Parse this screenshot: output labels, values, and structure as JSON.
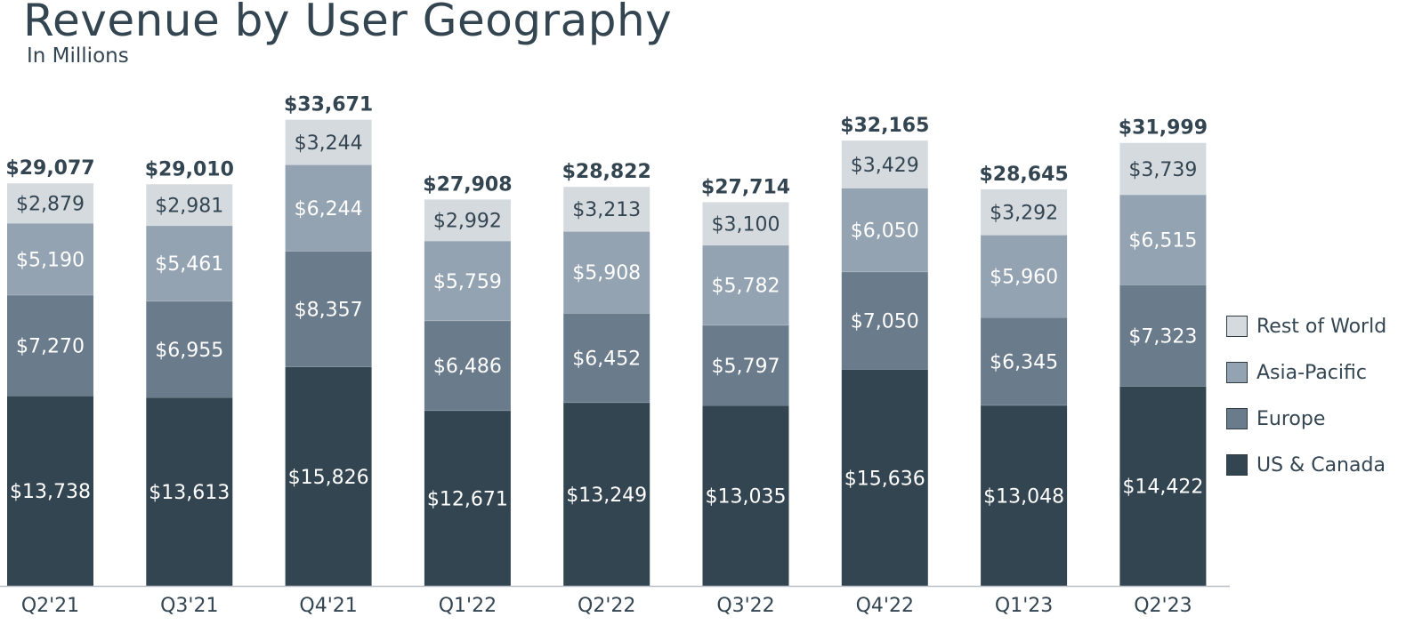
{
  "title": "Revenue by User Geography",
  "subtitle": "In Millions",
  "colors": {
    "us_canada": "#344552",
    "europe": "#6a7b8b",
    "asia_pacific": "#94a3b1",
    "rest_of_world": "#d5dadf",
    "text_dark": "#344552"
  },
  "legend": [
    {
      "label": "Rest of World",
      "color": "#d5dadf"
    },
    {
      "label": "Asia-Pacific",
      "color": "#94a3b1"
    },
    {
      "label": "Europe",
      "color": "#6a7b8b"
    },
    {
      "label": "US & Canada",
      "color": "#344552"
    }
  ],
  "chart_data": {
    "type": "bar",
    "stacked": true,
    "title": "Revenue by User Geography",
    "subtitle": "In Millions",
    "categories": [
      "Q2'21",
      "Q3'21",
      "Q4'21",
      "Q1'22",
      "Q2'22",
      "Q3'22",
      "Q4'22",
      "Q1'23",
      "Q2'23"
    ],
    "series": [
      {
        "name": "US & Canada",
        "values": [
          13738,
          13613,
          15826,
          12671,
          13249,
          13035,
          15636,
          13048,
          14422
        ]
      },
      {
        "name": "Europe",
        "values": [
          7270,
          6955,
          8357,
          6486,
          6452,
          5797,
          7050,
          6345,
          7323
        ]
      },
      {
        "name": "Asia-Pacific",
        "values": [
          5190,
          5461,
          6244,
          5759,
          5908,
          5782,
          6050,
          5960,
          6515
        ]
      },
      {
        "name": "Rest of World",
        "values": [
          2879,
          2981,
          3244,
          2992,
          3213,
          3100,
          3429,
          3292,
          3739
        ]
      }
    ],
    "totals": [
      29077,
      29010,
      33671,
      27908,
      28822,
      27714,
      32165,
      28645,
      31999
    ],
    "value_prefix": "$",
    "ylim": [
      0,
      35000
    ],
    "grid": false,
    "legend_position": "right"
  }
}
